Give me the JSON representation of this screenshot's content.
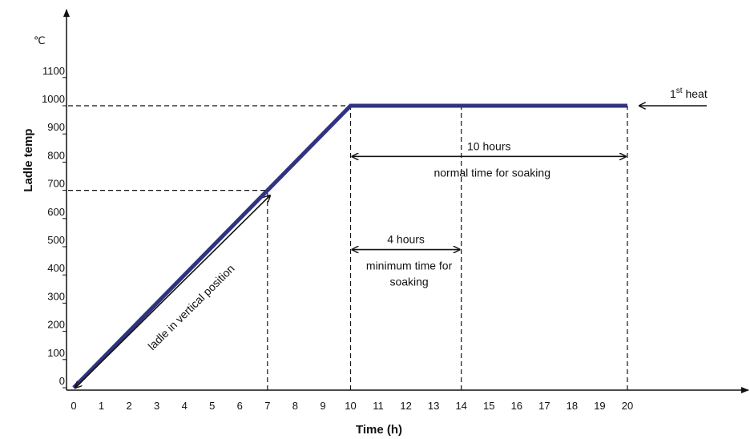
{
  "chart_data": {
    "type": "line",
    "title": "",
    "xlabel": "Time (h)",
    "ylabel": "Ladle temp",
    "yunit": "℃",
    "xlim": [
      0,
      20
    ],
    "ylim": [
      0,
      1100
    ],
    "x_ticks": [
      {
        "v": 0,
        "t": "0"
      },
      {
        "v": 1,
        "t": "1"
      },
      {
        "v": 2,
        "t": "2"
      },
      {
        "v": 3,
        "t": "3"
      },
      {
        "v": 4,
        "t": "4"
      },
      {
        "v": 5,
        "t": "5"
      },
      {
        "v": 6,
        "t": "6"
      },
      {
        "v": 7,
        "t": "7"
      },
      {
        "v": 8,
        "t": "8"
      },
      {
        "v": 9,
        "t": "9"
      },
      {
        "v": 10,
        "t": "10"
      },
      {
        "v": 11,
        "t": "11"
      },
      {
        "v": 12,
        "t": "12"
      },
      {
        "v": 13,
        "t": "13"
      },
      {
        "v": 14,
        "t": "14"
      },
      {
        "v": 15,
        "t": "15"
      },
      {
        "v": 16,
        "t": "16"
      },
      {
        "v": 17,
        "t": "17"
      },
      {
        "v": 18,
        "t": "18"
      },
      {
        "v": 19,
        "t": "19"
      },
      {
        "v": 20,
        "t": "20"
      }
    ],
    "y_ticks": [
      {
        "v": 0,
        "t": "0"
      },
      {
        "v": 100,
        "t": "100"
      },
      {
        "v": 200,
        "t": "200"
      },
      {
        "v": 300,
        "t": "300"
      },
      {
        "v": 400,
        "t": "400"
      },
      {
        "v": 500,
        "t": "500"
      },
      {
        "v": 600,
        "t": "600"
      },
      {
        "v": 700,
        "t": "700"
      },
      {
        "v": 800,
        "t": "800"
      },
      {
        "v": 900,
        "t": "900"
      },
      {
        "v": 1000,
        "t": "1000"
      },
      {
        "v": 1100,
        "t": "1100"
      }
    ],
    "series": [
      {
        "color": "#2e3480",
        "points": [
          [
            0,
            0
          ],
          [
            10,
            1000
          ],
          [
            20,
            1000
          ]
        ]
      }
    ],
    "reference_lines": [
      {
        "kind": "h",
        "y": 1000,
        "x_from": 0,
        "x_to": 10
      },
      {
        "kind": "h",
        "y": 700,
        "x_from": 0,
        "x_to": 7
      },
      {
        "kind": "v",
        "x": 7,
        "y_from": 0,
        "y_to": 700
      },
      {
        "kind": "v",
        "x": 10,
        "y_from": 0,
        "y_to": 1000
      },
      {
        "kind": "v",
        "x": 14,
        "y_from": 0,
        "y_to": 1000
      },
      {
        "kind": "v",
        "x": 20,
        "y_from": 0,
        "y_to": 1000
      }
    ],
    "spans": [
      {
        "x_from": 10,
        "x_to": 20,
        "y": 820,
        "label": "10 hours",
        "sublabel": "normal time for soaking"
      },
      {
        "x_from": 10,
        "x_to": 14,
        "y": 490,
        "label": "4 hours",
        "sublabel_line1": "minimum time for",
        "sublabel_line2": "soaking"
      }
    ],
    "diagonal_annotation": {
      "from": [
        0,
        0
      ],
      "to": [
        7,
        700
      ],
      "label": "ladle in vertical position"
    },
    "heat_annotation": {
      "label": "1",
      "sup": "st",
      "label_rest": " heat",
      "y": 1000
    }
  }
}
